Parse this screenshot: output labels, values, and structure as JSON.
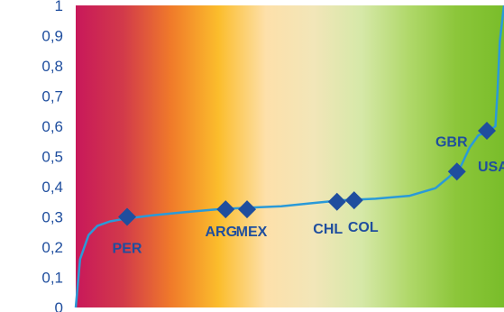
{
  "chart_data": {
    "type": "line",
    "title": "",
    "xlabel": "",
    "ylabel": "",
    "ylim": [
      0,
      1
    ],
    "y_ticks": [
      "0",
      "0,1",
      "0,2",
      "0,3",
      "0,4",
      "0,5",
      "0,6",
      "0,7",
      "0,8",
      "0,9",
      "1"
    ],
    "grid": false,
    "legend": "none",
    "colors": {
      "line": "#2a9ad8",
      "marker": "#1f4e9e",
      "tick_text": "#1f4e9e",
      "background_gradient": [
        "#c8185a",
        "#d23a4a",
        "#f07a2a",
        "#fbbd2c",
        "#fde0aa",
        "#f2e6b8",
        "#d6e8a8",
        "#b0d86a",
        "#8cc63a",
        "#79bd2a"
      ]
    },
    "curve": {
      "x": [
        0.0,
        0.01,
        0.03,
        0.05,
        0.08,
        0.12,
        0.18,
        0.25,
        0.33,
        0.4,
        0.48,
        0.55,
        0.62,
        0.7,
        0.78,
        0.84,
        0.87,
        0.9,
        0.92,
        0.94,
        0.96,
        0.98,
        0.985,
        0.99,
        1.0
      ],
      "y": [
        0.0,
        0.16,
        0.24,
        0.27,
        0.285,
        0.295,
        0.305,
        0.315,
        0.325,
        0.33,
        0.335,
        0.345,
        0.355,
        0.36,
        0.37,
        0.395,
        0.43,
        0.47,
        0.53,
        0.57,
        0.58,
        0.6,
        0.72,
        0.88,
        1.0
      ]
    },
    "points": [
      {
        "label": "PER",
        "x": 0.12,
        "y": 0.3
      },
      {
        "label": "ARG",
        "x": 0.35,
        "y": 0.325
      },
      {
        "label": "MEX",
        "x": 0.4,
        "y": 0.325
      },
      {
        "label": "CHL",
        "x": 0.61,
        "y": 0.35
      },
      {
        "label": "COL",
        "x": 0.65,
        "y": 0.355
      },
      {
        "label": "GBR",
        "x": 0.89,
        "y": 0.45
      },
      {
        "label": "USA",
        "x": 0.96,
        "y": 0.585
      }
    ]
  }
}
